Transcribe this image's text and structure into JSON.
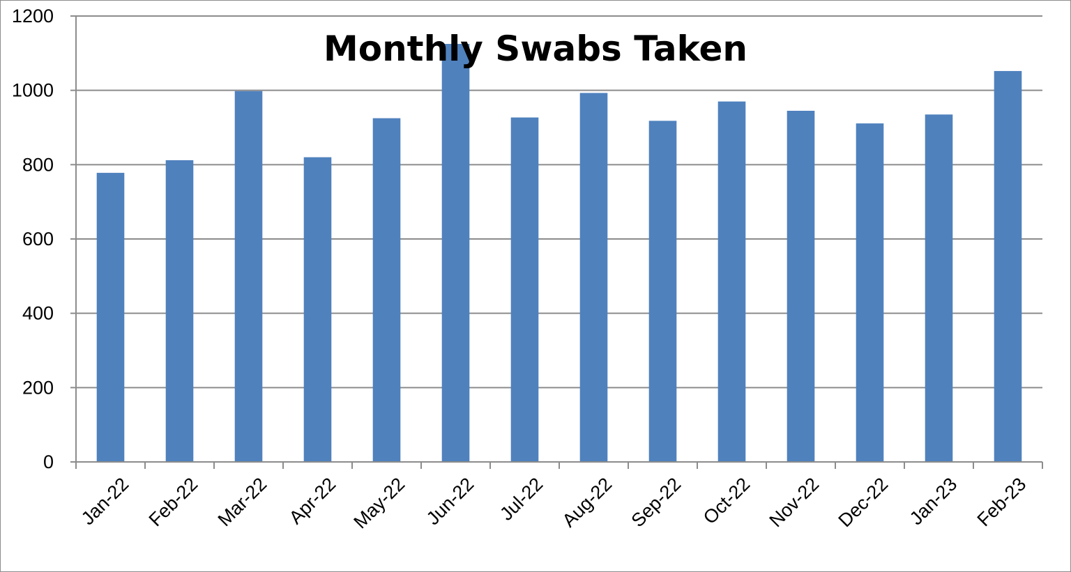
{
  "chart_data": {
    "type": "bar",
    "title": "Monthly Swabs Taken",
    "xlabel": "",
    "ylabel": "",
    "categories": [
      "Jan-22",
      "Feb-22",
      "Mar-22",
      "Apr-22",
      "May-22",
      "Jun-22",
      "Jul-22",
      "Aug-22",
      "Sep-22",
      "Oct-22",
      "Nov-22",
      "Dec-22",
      "Jan-23",
      "Feb-23"
    ],
    "values": [
      778,
      812,
      998,
      820,
      925,
      1125,
      927,
      993,
      918,
      970,
      945,
      911,
      935,
      1052
    ],
    "ylim": [
      0,
      1200
    ],
    "yticks": [
      0,
      200,
      400,
      600,
      800,
      1000,
      1200
    ],
    "grid": true,
    "legend": "none",
    "bar_color": "#4f81bd",
    "grid_color": "#8c8c8c"
  }
}
